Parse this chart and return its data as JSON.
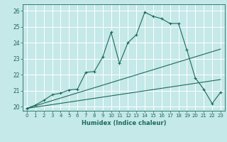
{
  "xlabel": "Humidex (Indice chaleur)",
  "bg_color": "#c5e8e8",
  "grid_color": "#ffffff",
  "line_color": "#1a6b5a",
  "xlim": [
    -0.5,
    23.5
  ],
  "ylim": [
    19.75,
    26.4
  ],
  "xticks": [
    0,
    1,
    2,
    3,
    4,
    5,
    6,
    7,
    8,
    9,
    10,
    11,
    12,
    13,
    14,
    15,
    16,
    17,
    18,
    19,
    20,
    21,
    22,
    23
  ],
  "yticks": [
    20,
    21,
    22,
    23,
    24,
    25,
    26
  ],
  "series1_x": [
    0,
    1,
    2,
    3,
    4,
    5,
    6,
    7,
    8,
    9,
    10,
    11,
    12,
    13,
    14,
    15,
    16,
    17,
    18,
    19,
    20,
    21,
    22,
    23
  ],
  "series1_y": [
    19.9,
    20.1,
    20.4,
    20.75,
    20.85,
    21.05,
    21.1,
    22.15,
    22.2,
    23.1,
    24.65,
    22.7,
    24.0,
    24.5,
    25.9,
    25.65,
    25.5,
    25.2,
    25.2,
    23.55,
    21.8,
    21.1,
    20.2,
    20.9
  ],
  "series2_x": [
    0,
    23
  ],
  "series2_y": [
    19.9,
    23.6
  ],
  "series3_x": [
    0,
    23
  ],
  "series3_y": [
    19.9,
    21.7
  ]
}
